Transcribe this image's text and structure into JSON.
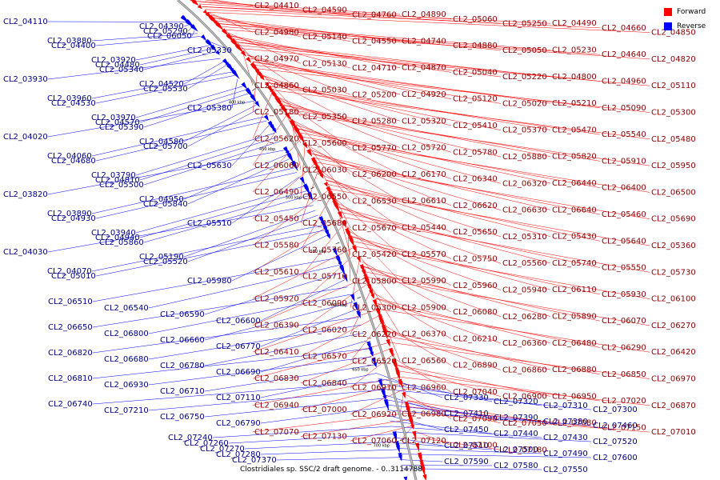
{
  "caption": "Clostridiales sp. SSC/2 draft genome. - 0..3114788",
  "legend": [
    {
      "label": "Forward",
      "color": "#ff0000"
    },
    {
      "label": "Reverse",
      "color": "#0000ff"
    }
  ],
  "colors": {
    "forward": "#ff0000",
    "reverse": "#0000ff",
    "backbone": "#888888"
  },
  "ticks": [
    "400 kbp",
    "450 kbp",
    "500 kbp",
    "550 kbp",
    "600 kbp",
    "650 kbp",
    "700 kbp"
  ],
  "forward_labels": [
    "CL2_04410",
    "CL2_04590",
    "CL2_04760",
    "CL2_04890",
    "CL2_05060",
    "CL2_05250",
    "CL2_04490",
    "CL2_04660",
    "CL2_04850",
    "CL2_04980",
    "CL2_05140",
    "CL2_04550",
    "CL2_04740",
    "CL2_04880",
    "CL2_05050",
    "CL2_05230",
    "CL2_04640",
    "CL2_04820",
    "CL2_04970",
    "CL2_05130",
    "CL2_04710",
    "CL2_04870",
    "CL2_05040",
    "CL2_05220",
    "CL2_04800",
    "CL2_04960",
    "CL2_05110",
    "CL2_04860",
    "CL2_05030",
    "CL2_05200",
    "CL2_04920",
    "CL2_05120",
    "CL2_05020",
    "CL2_05210",
    "CL2_05090",
    "CL2_05300",
    "CL2_05180",
    "CL2_05350",
    "CL2_05280",
    "CL2_05320",
    "CL2_05410",
    "CL2_05370",
    "CL2_05470",
    "CL2_05540",
    "CL2_05480",
    "CL2_05620",
    "CL2_05600",
    "CL2_05770",
    "CL2_05720",
    "CL2_05780",
    "CL2_05880",
    "CL2_05820",
    "CL2_05910",
    "CL2_05950",
    "CL2_06060",
    "CL2_06030",
    "CL2_06200",
    "CL2_06170",
    "CL2_06340",
    "CL2_06320",
    "CL2_06440",
    "CL2_06400",
    "CL2_06500",
    "CL2_06490",
    "CL2_06550",
    "CL2_06530",
    "CL2_06610",
    "CL2_06620",
    "CL2_06630",
    "CL2_06640",
    "CL2_05460",
    "CL2_05690",
    "CL2_05450",
    "CL2_05680",
    "CL2_05670",
    "CL2_05440",
    "CL2_05650",
    "CL2_05310",
    "CL2_05430",
    "CL2_05640",
    "CL2_05360",
    "CL2_05580",
    "CL2_05760",
    "CL2_05420",
    "CL2_05570",
    "CL2_05750",
    "CL2_05560",
    "CL2_05740",
    "CL2_05550",
    "CL2_05730",
    "CL2_05610",
    "CL2_05710",
    "CL2_05800",
    "CL2_05990",
    "CL2_05960",
    "CL2_05940",
    "CL2_06110",
    "CL2_05930",
    "CL2_06100",
    "CL2_05920",
    "CL2_06090",
    "CL2_06300",
    "CL2_05900",
    "CL2_06080",
    "CL2_06280",
    "CL2_05890",
    "CL2_06070",
    "CL2_06270",
    "CL2_06390",
    "CL2_06020",
    "CL2_06220",
    "CL2_06370",
    "CL2_06210",
    "CL2_06360",
    "CL2_06480",
    "CL2_06290",
    "CL2_06420",
    "CL2_06410",
    "CL2_06570",
    "CL2_06520",
    "CL2_06560",
    "CL2_06890",
    "CL2_06860",
    "CL2_06880",
    "CL2_06850",
    "CL2_06970",
    "CL2_06830",
    "CL2_06840",
    "CL2_06910",
    "CL2_06960",
    "CL2_07040",
    "CL2_06900",
    "CL2_06950",
    "CL2_07020",
    "CL2_06870",
    "CL2_06940",
    "CL2_07000",
    "CL2_06920",
    "CL2_06980",
    "CL2_07090",
    "CL2_07050",
    "CL2_07080",
    "CL2_07150",
    "CL2_07010",
    "CL2_07070",
    "CL2_07130",
    "CL2_07060",
    "CL2_07120",
    "CL2_07100",
    "CL2_07180"
  ],
  "reverse_labels": [
    "CL2_04110",
    "CL2_03880",
    "CL2_03920",
    "CL2_03930",
    "CL2_03960",
    "CL2_03970",
    "CL2_04020",
    "CL2_04060",
    "CL2_03790",
    "CL2_03820",
    "CL2_03890",
    "CL2_03940",
    "CL2_04030",
    "CL2_04070",
    "CL2_04390",
    "CL2_04400",
    "CL2_04480",
    "CL2_04520",
    "CL2_04530",
    "CL2_04570",
    "CL2_04580",
    "CL2_04680",
    "CL2_04810",
    "CL2_04950",
    "CL2_04930",
    "CL2_04940",
    "CL2_05190",
    "CL2_05010",
    "CL2_05290",
    "CL2_05330",
    "CL2_05340",
    "CL2_05530",
    "CL2_05380",
    "CL2_05390",
    "CL2_05700",
    "CL2_05630",
    "CL2_05500",
    "CL2_05840",
    "CL2_05510",
    "CL2_05860",
    "CL2_05520",
    "CL2_05980",
    "CL2_06050",
    "CL2_06510",
    "CL2_06540",
    "CL2_06590",
    "CL2_06600",
    "CL2_06650",
    "CL2_06800",
    "CL2_06660",
    "CL2_06770",
    "CL2_06820",
    "CL2_06680",
    "CL2_06780",
    "CL2_06690",
    "CL2_06810",
    "CL2_06930",
    "CL2_06710",
    "CL2_07110",
    "CL2_06740",
    "CL2_07210",
    "CL2_06750",
    "CL2_06790",
    "CL2_07240",
    "CL2_07260",
    "CL2_07270",
    "CL2_07280",
    "CL2_07370",
    "CL2_07330",
    "CL2_07320",
    "CL2_07310",
    "CL2_07300",
    "CL2_07410",
    "CL2_07390",
    "CL2_07380",
    "CL2_07460",
    "CL2_07450",
    "CL2_07440",
    "CL2_07430",
    "CL2_07520",
    "CL2_07510",
    "CL2_07500",
    "CL2_07490",
    "CL2_07600",
    "CL2_07590",
    "CL2_07580",
    "CL2_07550"
  ]
}
